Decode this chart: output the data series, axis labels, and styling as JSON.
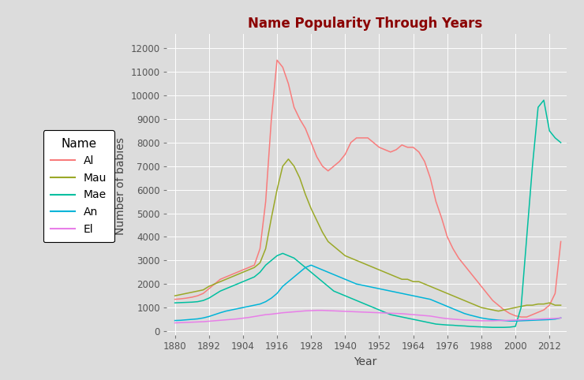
{
  "title": "Name Popularity Through Years",
  "title_color": "#8B0000",
  "xlabel": "Year",
  "ylabel": "Number of babies",
  "plot_bg": "#DCDCDC",
  "fig_bg": "#DCDCDC",
  "grid_color": "#FFFFFF",
  "legend_title": "Name",
  "names": [
    "Al",
    "Mau",
    "Mae",
    "An",
    "El"
  ],
  "colors": {
    "Al": "#F87C7C",
    "Mau": "#9AA827",
    "Mae": "#00BFA0",
    "An": "#00B4D8",
    "El": "#E87EE8"
  },
  "years": [
    1880,
    1882,
    1884,
    1886,
    1888,
    1890,
    1892,
    1894,
    1896,
    1898,
    1900,
    1902,
    1904,
    1906,
    1908,
    1910,
    1912,
    1914,
    1916,
    1918,
    1920,
    1922,
    1924,
    1926,
    1928,
    1930,
    1932,
    1934,
    1936,
    1938,
    1940,
    1942,
    1944,
    1946,
    1948,
    1950,
    1952,
    1954,
    1956,
    1958,
    1960,
    1962,
    1964,
    1966,
    1968,
    1970,
    1972,
    1974,
    1976,
    1978,
    1980,
    1982,
    1984,
    1986,
    1988,
    1990,
    1992,
    1994,
    1996,
    1998,
    2000,
    2002,
    2004,
    2006,
    2008,
    2010,
    2012,
    2014,
    2016
  ],
  "Al": [
    1350,
    1370,
    1400,
    1440,
    1500,
    1600,
    1800,
    2000,
    2200,
    2300,
    2400,
    2500,
    2600,
    2700,
    2800,
    3500,
    5500,
    9000,
    11500,
    11200,
    10500,
    9500,
    9000,
    8600,
    8000,
    7400,
    7000,
    6800,
    7000,
    7200,
    7500,
    8000,
    8200,
    8200,
    8200,
    8000,
    7800,
    7700,
    7600,
    7700,
    7900,
    7800,
    7800,
    7600,
    7200,
    6500,
    5500,
    4800,
    4000,
    3500,
    3100,
    2800,
    2500,
    2200,
    1900,
    1600,
    1300,
    1100,
    900,
    750,
    650,
    600,
    600,
    700,
    800,
    900,
    1100,
    1600,
    3800
  ],
  "Mau": [
    1500,
    1550,
    1600,
    1650,
    1700,
    1750,
    1900,
    2000,
    2100,
    2200,
    2300,
    2400,
    2500,
    2600,
    2700,
    2900,
    3500,
    4800,
    6000,
    7000,
    7300,
    7000,
    6500,
    5800,
    5200,
    4700,
    4200,
    3800,
    3600,
    3400,
    3200,
    3100,
    3000,
    2900,
    2800,
    2700,
    2600,
    2500,
    2400,
    2300,
    2200,
    2200,
    2100,
    2100,
    2000,
    1900,
    1800,
    1700,
    1600,
    1500,
    1400,
    1300,
    1200,
    1100,
    1000,
    950,
    900,
    850,
    900,
    950,
    1000,
    1050,
    1100,
    1100,
    1150,
    1150,
    1200,
    1100,
    1100
  ],
  "Mae": [
    1200,
    1210,
    1220,
    1230,
    1250,
    1300,
    1400,
    1550,
    1700,
    1800,
    1900,
    2000,
    2100,
    2200,
    2300,
    2500,
    2800,
    3000,
    3200,
    3300,
    3200,
    3100,
    2900,
    2700,
    2500,
    2300,
    2100,
    1900,
    1700,
    1600,
    1500,
    1400,
    1300,
    1200,
    1100,
    1000,
    900,
    800,
    700,
    650,
    600,
    550,
    500,
    450,
    400,
    350,
    300,
    280,
    260,
    250,
    230,
    220,
    200,
    190,
    180,
    170,
    160,
    160,
    160,
    170,
    200,
    1000,
    4000,
    7000,
    9500,
    9800,
    8500,
    8200,
    8000
  ],
  "An": [
    450,
    460,
    480,
    500,
    520,
    560,
    620,
    700,
    780,
    850,
    900,
    950,
    1000,
    1050,
    1100,
    1150,
    1250,
    1400,
    1600,
    1900,
    2100,
    2300,
    2500,
    2700,
    2800,
    2700,
    2600,
    2500,
    2400,
    2300,
    2200,
    2100,
    2000,
    1950,
    1900,
    1850,
    1800,
    1750,
    1700,
    1650,
    1600,
    1550,
    1500,
    1450,
    1400,
    1350,
    1250,
    1150,
    1050,
    950,
    850,
    750,
    680,
    620,
    560,
    520,
    490,
    470,
    450,
    430,
    430,
    440,
    450,
    460,
    470,
    480,
    490,
    510,
    560
  ],
  "El": [
    350,
    360,
    370,
    380,
    390,
    400,
    420,
    440,
    460,
    480,
    500,
    520,
    550,
    580,
    620,
    660,
    700,
    720,
    750,
    780,
    800,
    820,
    840,
    860,
    870,
    880,
    880,
    870,
    860,
    850,
    840,
    830,
    820,
    810,
    800,
    790,
    780,
    770,
    760,
    750,
    740,
    720,
    700,
    680,
    660,
    640,
    600,
    560,
    530,
    510,
    490,
    470,
    460,
    450,
    440,
    440,
    440,
    450,
    450,
    460,
    470,
    480,
    490,
    500,
    510,
    520,
    530,
    540,
    560
  ],
  "xtick_vals": [
    1880,
    1892,
    1904,
    1916,
    1928,
    1940,
    1952,
    1964,
    1976,
    1988,
    2000,
    2012
  ],
  "ytick_vals": [
    0,
    1000,
    2000,
    3000,
    4000,
    5000,
    6000,
    7000,
    8000,
    9000,
    10000,
    11000,
    12000
  ]
}
